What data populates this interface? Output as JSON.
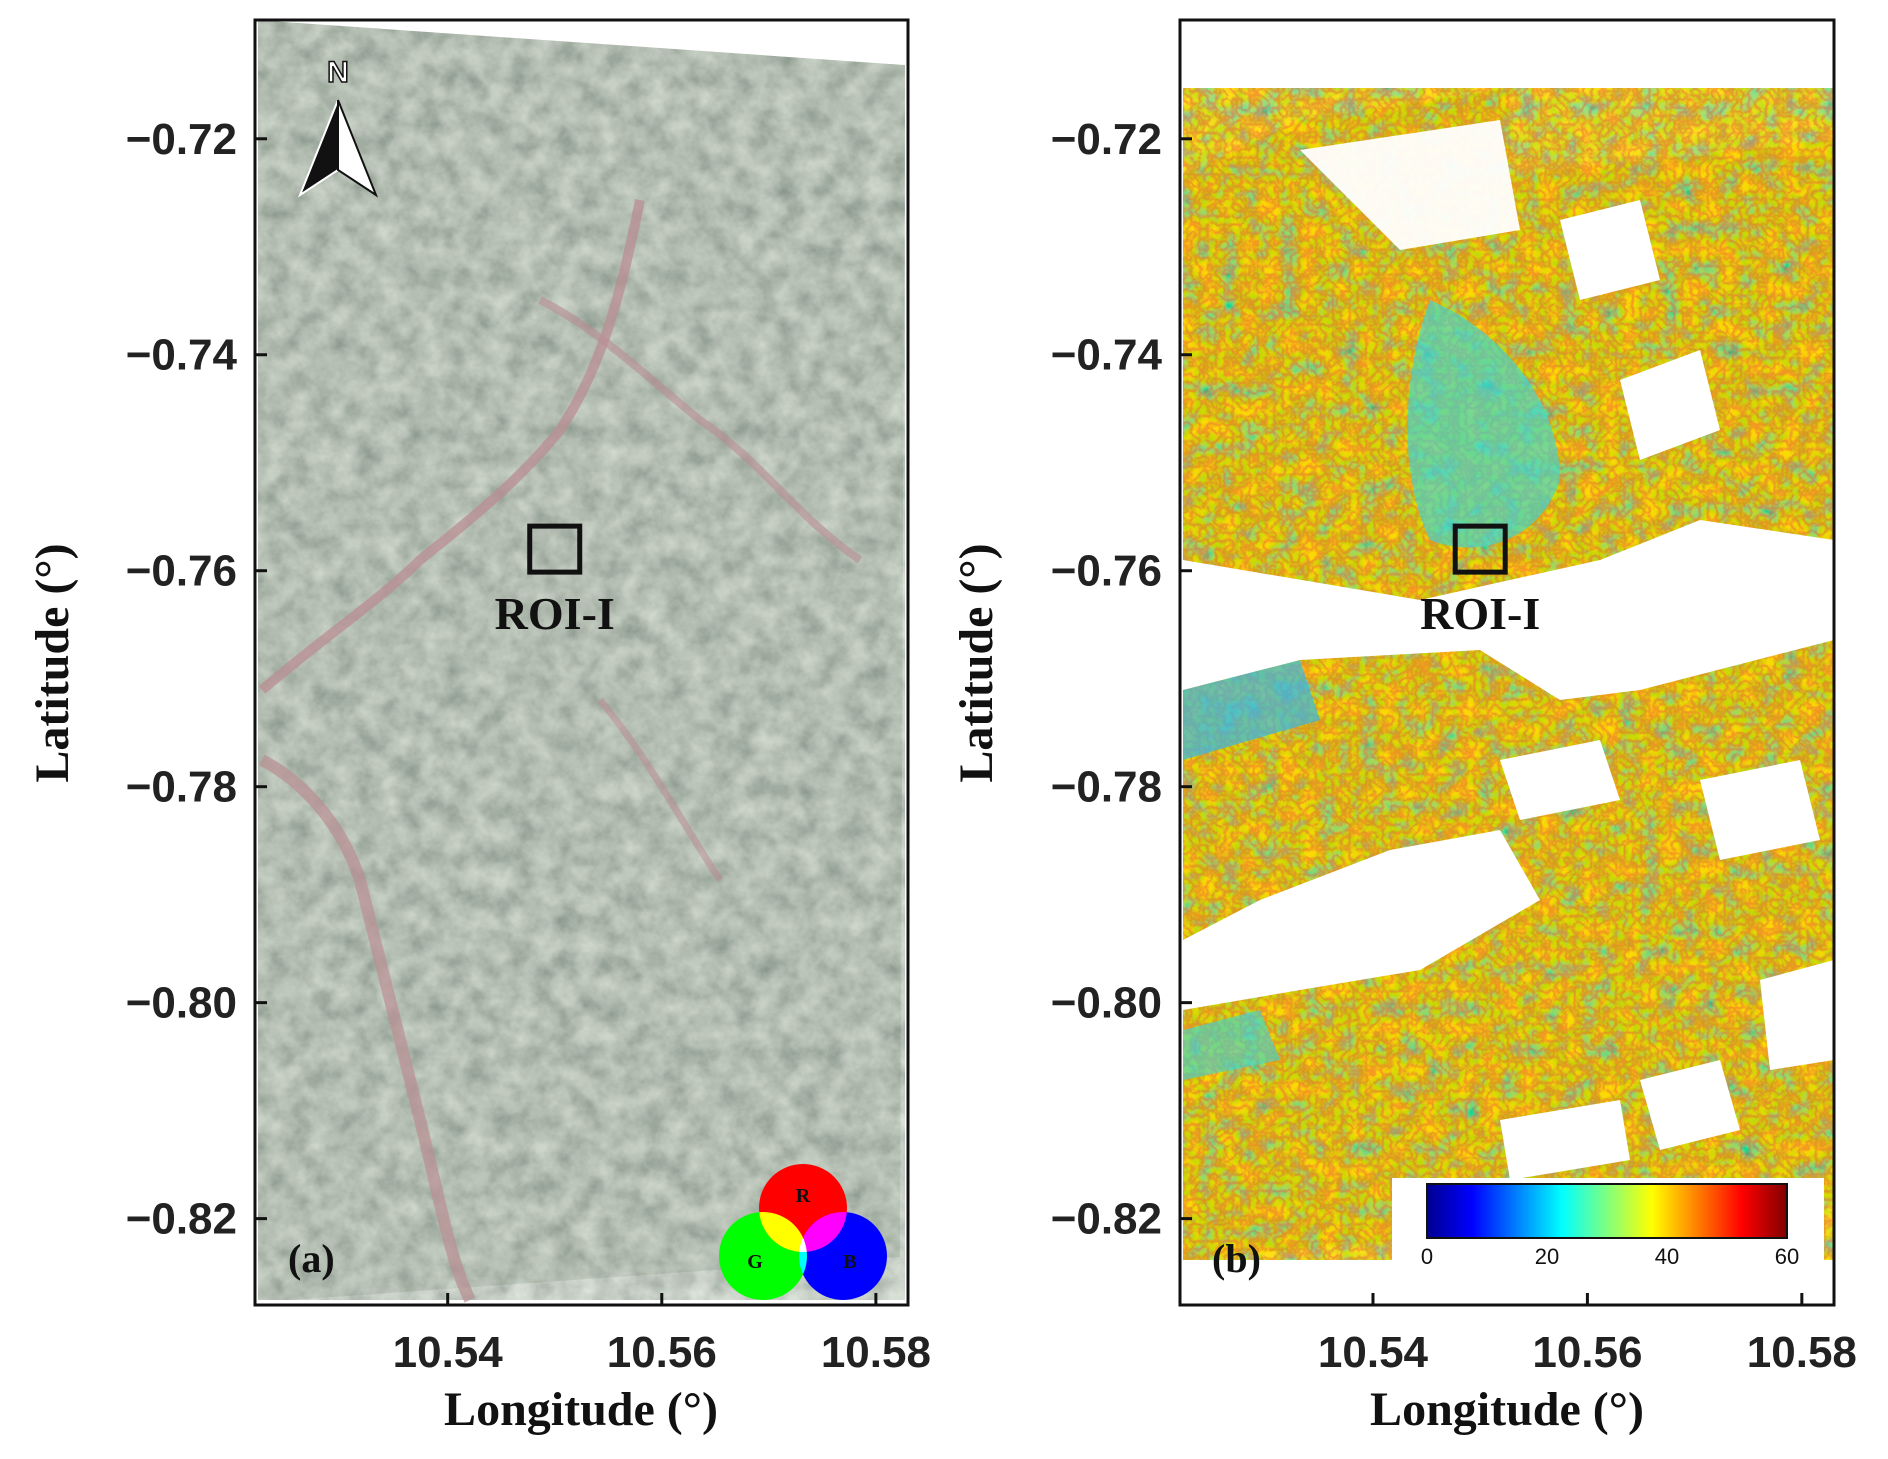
{
  "panels": [
    {
      "id": "a",
      "label": "(a)",
      "xlabel": "Longitude (°)",
      "ylabel": "Latitude (°)",
      "x_ticks": [
        "10.54",
        "10.56",
        "10.58"
      ],
      "y_ticks": [
        "−0.72",
        "−0.74",
        "−0.76",
        "−0.78",
        "−0.80",
        "−0.82"
      ],
      "roi_label": "ROI-I",
      "north_label": "N",
      "rgb_legend": {
        "r": "R",
        "g": "G",
        "b": "B"
      },
      "colors": {
        "image_base": "#8c9684",
        "river": "#b88f92"
      }
    },
    {
      "id": "b",
      "label": "(b)",
      "xlabel": "Longitude (°)",
      "ylabel": "Latitude (°)",
      "x_ticks": [
        "10.54",
        "10.56",
        "10.58"
      ],
      "y_ticks": [
        "−0.72",
        "−0.74",
        "−0.76",
        "−0.78",
        "−0.80",
        "−0.82"
      ],
      "roi_label": "ROI-I",
      "colorbar": {
        "ticks": [
          "0",
          "20",
          "40",
          "60"
        ],
        "range": [
          0,
          60
        ],
        "colormap": "jet"
      }
    }
  ],
  "axes": {
    "x_range": [
      10.522,
      10.583
    ],
    "y_range": [
      -0.828,
      -0.709
    ],
    "x_tick_values": [
      10.54,
      10.56,
      10.58
    ],
    "y_tick_values": [
      -0.72,
      -0.74,
      -0.76,
      -0.78,
      -0.8,
      -0.82
    ],
    "roi_center": [
      10.55,
      -0.758
    ]
  }
}
